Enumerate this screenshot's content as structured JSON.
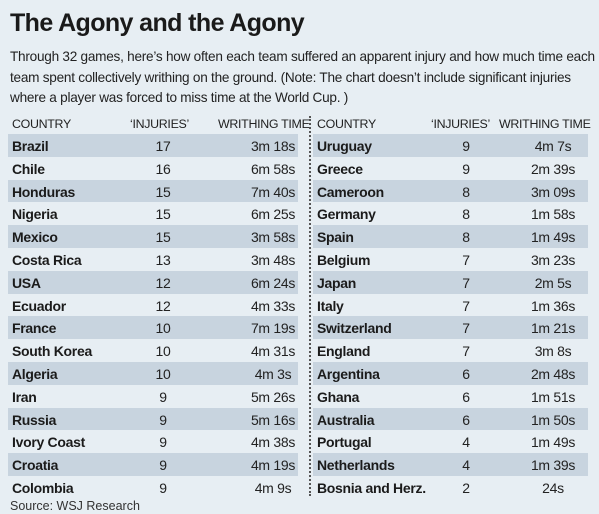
{
  "title": "The Agony and the Agony",
  "intro": "Through 32 games, here’s how often each team suffered an apparent injury and how much time each team spent collectively writhing on the ground. (Note: The chart doesn’t include significant injuries where a player was forced to miss time at the World Cup. )",
  "source": "Source: WSJ Research",
  "colors": {
    "background": "#e7eef3",
    "row_shade": "#c8d4df"
  },
  "chart_data": {
    "type": "table",
    "title": "The Agony and the Agony",
    "columns": [
      "COUNTRY",
      "‘INJURIES’",
      "WRITHING TIME"
    ],
    "rows": [
      [
        "Brazil",
        "17",
        "3m 18s"
      ],
      [
        "Chile",
        "16",
        "6m 58s"
      ],
      [
        "Honduras",
        "15",
        "7m 40s"
      ],
      [
        "Nigeria",
        "15",
        "6m 25s"
      ],
      [
        "Mexico",
        "15",
        "3m 58s"
      ],
      [
        "Costa Rica",
        "13",
        "3m 48s"
      ],
      [
        "USA",
        "12",
        "6m 24s"
      ],
      [
        "Ecuador",
        "12",
        "4m 33s"
      ],
      [
        "France",
        "10",
        "7m 19s"
      ],
      [
        "South Korea",
        "10",
        "4m 31s"
      ],
      [
        "Algeria",
        "10",
        "4m 3s"
      ],
      [
        "Iran",
        "9",
        "5m 26s"
      ],
      [
        "Russia",
        "9",
        "5m 16s"
      ],
      [
        "Ivory Coast",
        "9",
        "4m 38s"
      ],
      [
        "Croatia",
        "9",
        "4m 19s"
      ],
      [
        "Colombia",
        "9",
        "4m 9s"
      ],
      [
        "Uruguay",
        "9",
        "4m 7s"
      ],
      [
        "Greece",
        "9",
        "2m 39s"
      ],
      [
        "Cameroon",
        "8",
        "3m 09s"
      ],
      [
        "Germany",
        "8",
        "1m 58s"
      ],
      [
        "Spain",
        "8",
        "1m 49s"
      ],
      [
        "Belgium",
        "7",
        "3m 23s"
      ],
      [
        "Japan",
        "7",
        "2m 5s"
      ],
      [
        "Italy",
        "7",
        "1m 36s"
      ],
      [
        "Switzerland",
        "7",
        "1m 21s"
      ],
      [
        "England",
        "7",
        "3m 8s"
      ],
      [
        "Argentina",
        "6",
        "2m 48s"
      ],
      [
        "Ghana",
        "6",
        "1m 51s"
      ],
      [
        "Australia",
        "6",
        "1m 50s"
      ],
      [
        "Portugal",
        "4",
        "1m 49s"
      ],
      [
        "Netherlands",
        "4",
        "1m 39s"
      ],
      [
        "Bosnia and Herz.",
        "2",
        "24s"
      ]
    ]
  }
}
